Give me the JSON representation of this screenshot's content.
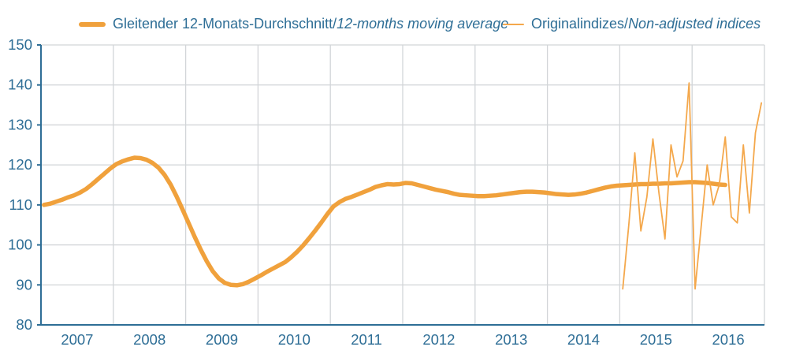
{
  "colors": {
    "moving_average_line": "#F0A13C",
    "original_index_line": "#F4A84C",
    "axis": "#2E6E96",
    "grid": "#D2D5D8",
    "label_text": "#2E6E96"
  },
  "legend": [
    {
      "label_regular": "Gleitender 12-Monats-Durchschnitt/",
      "label_italic": "12-months moving average",
      "swatch": "thick-orange-line"
    },
    {
      "label_regular": "Originalindizes/",
      "label_italic": "Non-adjusted indices",
      "swatch": "thin-orange-line"
    }
  ],
  "chart_data": {
    "type": "line",
    "title": "",
    "xlabel": "",
    "ylabel": "",
    "ylim": [
      80,
      150
    ],
    "y_ticks": [
      150,
      140,
      130,
      120,
      110,
      100,
      90,
      80
    ],
    "x_tick_labels": [
      "2007",
      "2008",
      "2009",
      "2010",
      "2011",
      "2012",
      "2013",
      "2014",
      "2015",
      "2016"
    ],
    "x_range_years": [
      2007,
      2017
    ],
    "grid": true,
    "legend_position": "top",
    "series": [
      {
        "name": "Gleitender 12-Monats-Durchschnitt/12-months moving average",
        "style": "thick",
        "start_year": 2007,
        "start_month": 1,
        "values": [
          110.0,
          110.3,
          110.8,
          111.3,
          111.9,
          112.4,
          113.1,
          114.0,
          115.2,
          116.5,
          117.8,
          119.1,
          120.2,
          120.9,
          121.4,
          121.8,
          121.7,
          121.3,
          120.5,
          119.3,
          117.5,
          115.1,
          112.1,
          108.8,
          105.4,
          102.0,
          98.8,
          95.9,
          93.4,
          91.6,
          90.5,
          90.0,
          89.9,
          90.2,
          90.8,
          91.6,
          92.4,
          93.3,
          94.1,
          94.9,
          95.7,
          96.9,
          98.3,
          99.9,
          101.7,
          103.6,
          105.6,
          107.7,
          109.6,
          110.7,
          111.5,
          112.0,
          112.6,
          113.2,
          113.8,
          114.5,
          114.9,
          115.2,
          115.1,
          115.2,
          115.5,
          115.4,
          115.0,
          114.6,
          114.2,
          113.8,
          113.5,
          113.2,
          112.8,
          112.5,
          112.4,
          112.3,
          112.2,
          112.2,
          112.3,
          112.4,
          112.6,
          112.8,
          113.0,
          113.2,
          113.3,
          113.3,
          113.2,
          113.1,
          112.9,
          112.7,
          112.6,
          112.5,
          112.6,
          112.8,
          113.1,
          113.5,
          113.9,
          114.3,
          114.6,
          114.8,
          114.9,
          115.0,
          115.1,
          115.2,
          115.2,
          115.3,
          115.3,
          115.4,
          115.4,
          115.5,
          115.6,
          115.7,
          115.7,
          115.6,
          115.5,
          115.3,
          115.1,
          115.0
        ]
      },
      {
        "name": "Originalindizes/Non-adjusted indices",
        "style": "thin",
        "start_year": 2015,
        "start_month": 1,
        "values": [
          89.0,
          105.0,
          123.0,
          103.5,
          112.0,
          126.5,
          113.0,
          101.5,
          125.0,
          117.0,
          121.0,
          140.5,
          89.0,
          104.5,
          120.0,
          110.0,
          115.0,
          127.0,
          107.0,
          105.5,
          125.0,
          108.0,
          128.0,
          135.5
        ]
      }
    ]
  }
}
